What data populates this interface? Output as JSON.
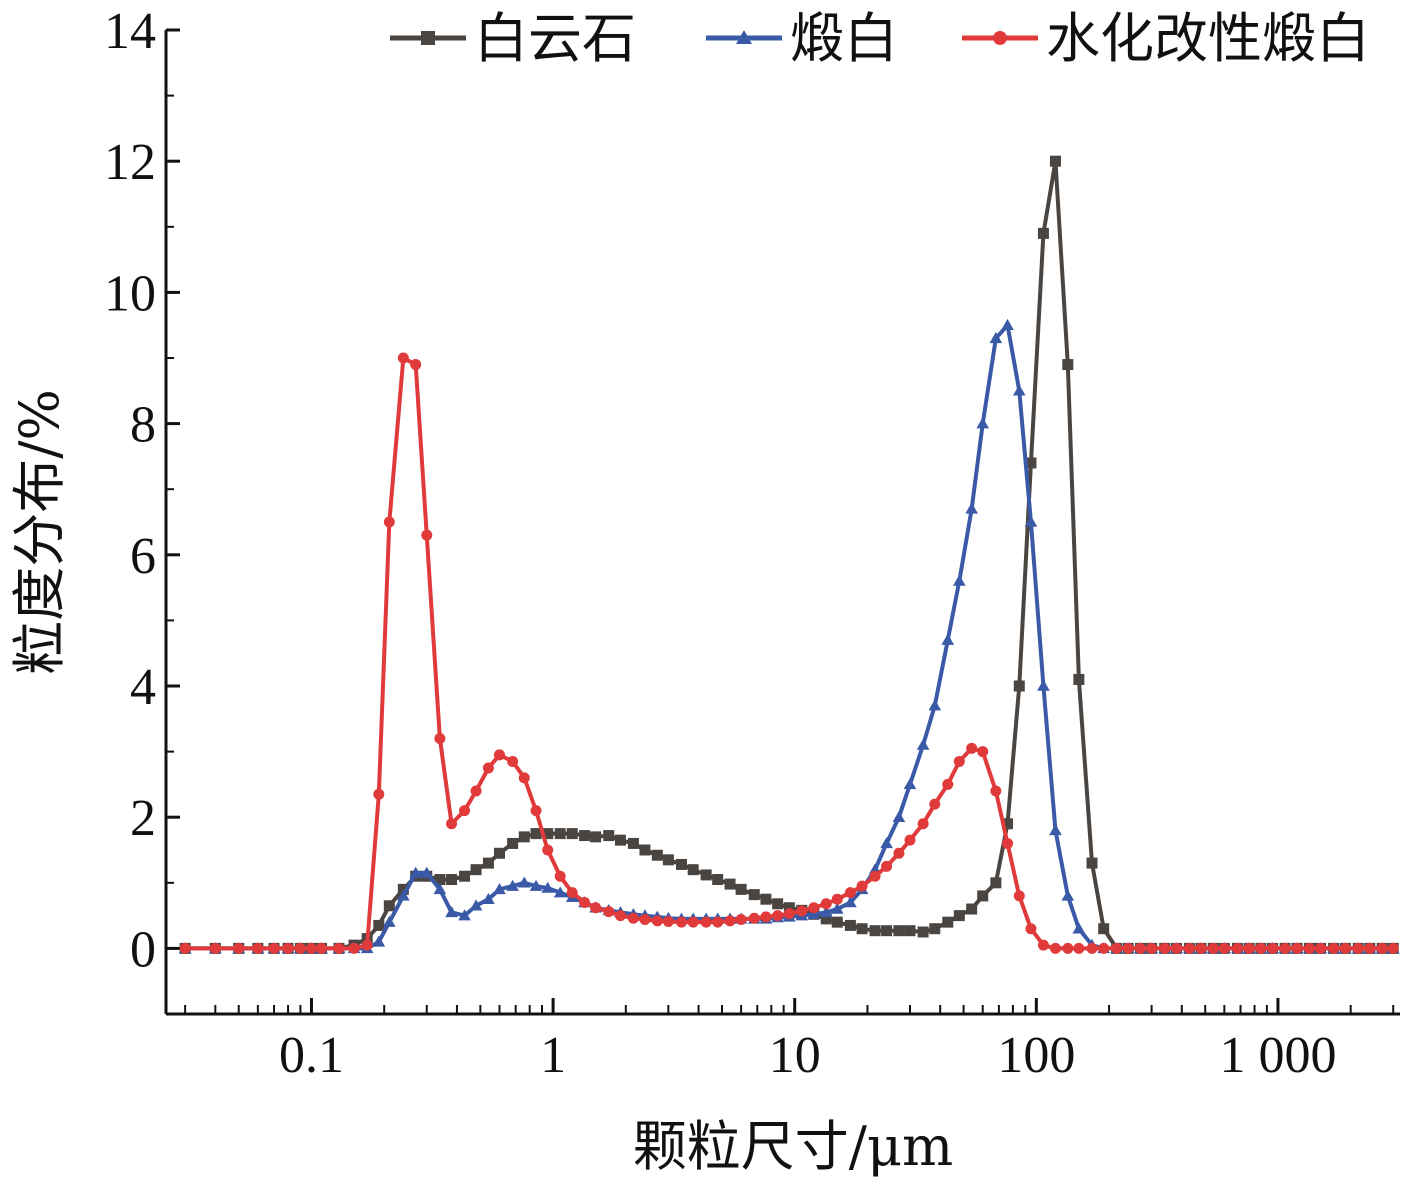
{
  "chart_data": {
    "type": "line",
    "xlabel": "颗粒尺寸/μm",
    "ylabel": "粒度分布/%",
    "x_scale": "log",
    "xlim": [
      0.025,
      3200
    ],
    "ylim": [
      -1,
      14
    ],
    "x_ticks": [
      0.1,
      1,
      10,
      100,
      1000
    ],
    "x_tick_labels": [
      "0.1",
      "1",
      "10",
      "100",
      "1 000"
    ],
    "y_ticks": [
      0,
      2,
      4,
      6,
      8,
      10,
      12,
      14
    ],
    "y_tick_labels": [
      "0",
      "2",
      "4",
      "6",
      "8",
      "10",
      "12",
      "14"
    ],
    "grid": false,
    "legend_position": "top",
    "series": [
      {
        "name": "白云石",
        "color": "#4a4540",
        "marker": "square",
        "x": [
          0.03,
          0.04,
          0.05,
          0.06,
          0.07,
          0.08,
          0.09,
          0.1,
          0.11,
          0.13,
          0.15,
          0.17,
          0.19,
          0.21,
          0.24,
          0.27,
          0.3,
          0.34,
          0.38,
          0.43,
          0.48,
          0.54,
          0.6,
          0.68,
          0.76,
          0.85,
          0.95,
          1.07,
          1.2,
          1.35,
          1.5,
          1.7,
          1.9,
          2.15,
          2.4,
          2.7,
          3,
          3.4,
          3.8,
          4.3,
          4.8,
          5.4,
          6,
          6.8,
          7.6,
          8.5,
          9.5,
          10.7,
          12,
          13.5,
          15,
          17,
          19,
          21.5,
          24,
          27,
          30,
          34,
          38,
          43,
          48,
          54,
          60,
          68,
          76,
          85,
          95,
          107,
          120,
          135,
          150,
          170,
          190,
          215,
          240,
          270,
          300,
          340,
          380,
          430,
          480,
          540,
          600,
          680,
          760,
          850,
          950,
          1070,
          1200,
          1350,
          1500,
          1700,
          1900,
          2150,
          2400,
          2700,
          3000
        ],
        "values": [
          0,
          0,
          0,
          0,
          0,
          0,
          0,
          0,
          0,
          0,
          0.05,
          0.15,
          0.35,
          0.65,
          0.9,
          1.1,
          1.1,
          1.05,
          1.05,
          1.1,
          1.2,
          1.3,
          1.45,
          1.6,
          1.7,
          1.75,
          1.75,
          1.75,
          1.75,
          1.72,
          1.7,
          1.72,
          1.65,
          1.6,
          1.5,
          1.42,
          1.35,
          1.28,
          1.2,
          1.12,
          1.05,
          0.98,
          0.9,
          0.82,
          0.75,
          0.68,
          0.62,
          0.58,
          0.52,
          0.45,
          0.4,
          0.35,
          0.3,
          0.27,
          0.27,
          0.27,
          0.27,
          0.25,
          0.3,
          0.4,
          0.5,
          0.6,
          0.8,
          1.0,
          1.9,
          4.0,
          7.4,
          10.9,
          12.0,
          8.9,
          4.1,
          1.3,
          0.3,
          0,
          0,
          0,
          0,
          0,
          0,
          0,
          0,
          0,
          0,
          0,
          0,
          0,
          0,
          0,
          0,
          0,
          0,
          0,
          0,
          0,
          0,
          0,
          0
        ]
      },
      {
        "name": "煅白",
        "color": "#3a5aa8",
        "marker": "triangle",
        "x": [
          0.03,
          0.04,
          0.05,
          0.06,
          0.07,
          0.08,
          0.09,
          0.1,
          0.11,
          0.13,
          0.15,
          0.17,
          0.19,
          0.21,
          0.24,
          0.27,
          0.3,
          0.34,
          0.38,
          0.43,
          0.48,
          0.54,
          0.6,
          0.68,
          0.76,
          0.85,
          0.95,
          1.07,
          1.2,
          1.35,
          1.5,
          1.7,
          1.9,
          2.15,
          2.4,
          2.7,
          3,
          3.4,
          3.8,
          4.3,
          4.8,
          5.4,
          6,
          6.8,
          7.6,
          8.5,
          9.5,
          10.7,
          12,
          13.5,
          15,
          17,
          19,
          21.5,
          24,
          27,
          30,
          34,
          38,
          43,
          48,
          54,
          60,
          68,
          76,
          85,
          95,
          107,
          120,
          135,
          150,
          170,
          190,
          215,
          240,
          270,
          300,
          340,
          380,
          430,
          480,
          540,
          600,
          680,
          760,
          850,
          950,
          1070,
          1200,
          1350,
          1500,
          1700,
          1900,
          2150,
          2400,
          2700,
          3000
        ],
        "values": [
          0,
          0,
          0,
          0,
          0,
          0,
          0,
          0,
          0,
          0,
          0,
          0,
          0.1,
          0.4,
          0.8,
          1.15,
          1.15,
          0.9,
          0.55,
          0.5,
          0.65,
          0.75,
          0.9,
          0.95,
          1.0,
          0.95,
          0.92,
          0.85,
          0.78,
          0.7,
          0.62,
          0.58,
          0.55,
          0.52,
          0.5,
          0.48,
          0.46,
          0.45,
          0.45,
          0.45,
          0.45,
          0.45,
          0.45,
          0.45,
          0.45,
          0.47,
          0.48,
          0.5,
          0.52,
          0.55,
          0.6,
          0.7,
          0.9,
          1.2,
          1.6,
          2.0,
          2.5,
          3.1,
          3.7,
          4.7,
          5.6,
          6.7,
          8.0,
          9.3,
          9.5,
          8.5,
          6.5,
          4.0,
          1.8,
          0.8,
          0.3,
          0.05,
          0,
          0,
          0,
          0,
          0,
          0,
          0,
          0,
          0,
          0,
          0,
          0,
          0,
          0,
          0,
          0,
          0,
          0,
          0,
          0,
          0,
          0,
          0,
          0,
          0
        ]
      },
      {
        "name": "水化改性煅白",
        "color": "#e03a3a",
        "marker": "circle",
        "x": [
          0.03,
          0.04,
          0.05,
          0.06,
          0.07,
          0.08,
          0.09,
          0.1,
          0.11,
          0.13,
          0.15,
          0.17,
          0.19,
          0.21,
          0.24,
          0.27,
          0.3,
          0.34,
          0.38,
          0.43,
          0.48,
          0.54,
          0.6,
          0.68,
          0.76,
          0.85,
          0.95,
          1.07,
          1.2,
          1.35,
          1.5,
          1.7,
          1.9,
          2.15,
          2.4,
          2.7,
          3,
          3.4,
          3.8,
          4.3,
          4.8,
          5.4,
          6,
          6.8,
          7.6,
          8.5,
          9.5,
          10.7,
          12,
          13.5,
          15,
          17,
          19,
          21.5,
          24,
          27,
          30,
          34,
          38,
          43,
          48,
          54,
          60,
          68,
          76,
          85,
          95,
          107,
          120,
          135,
          150,
          170,
          190,
          215,
          240,
          270,
          300,
          340,
          380,
          430,
          480,
          540,
          600,
          680,
          760,
          850,
          950,
          1070,
          1200,
          1350,
          1500,
          1700,
          1900,
          2150,
          2400,
          2700,
          3000
        ],
        "values": [
          0,
          0,
          0,
          0,
          0,
          0,
          0,
          0,
          0,
          0,
          0,
          0.05,
          2.35,
          6.5,
          9.0,
          8.9,
          6.3,
          3.2,
          1.9,
          2.1,
          2.4,
          2.75,
          2.95,
          2.85,
          2.6,
          2.1,
          1.5,
          1.1,
          0.85,
          0.7,
          0.62,
          0.56,
          0.5,
          0.46,
          0.44,
          0.42,
          0.41,
          0.4,
          0.4,
          0.4,
          0.4,
          0.42,
          0.44,
          0.46,
          0.48,
          0.5,
          0.53,
          0.57,
          0.62,
          0.68,
          0.75,
          0.85,
          0.95,
          1.1,
          1.25,
          1.45,
          1.65,
          1.9,
          2.2,
          2.5,
          2.85,
          3.05,
          3.0,
          2.4,
          1.6,
          0.8,
          0.3,
          0.05,
          0,
          0,
          0,
          0,
          0,
          0,
          0,
          0,
          0,
          0,
          0,
          0,
          0,
          0,
          0,
          0,
          0,
          0,
          0,
          0,
          0,
          0,
          0,
          0,
          0,
          0,
          0,
          0,
          0
        ]
      }
    ]
  }
}
